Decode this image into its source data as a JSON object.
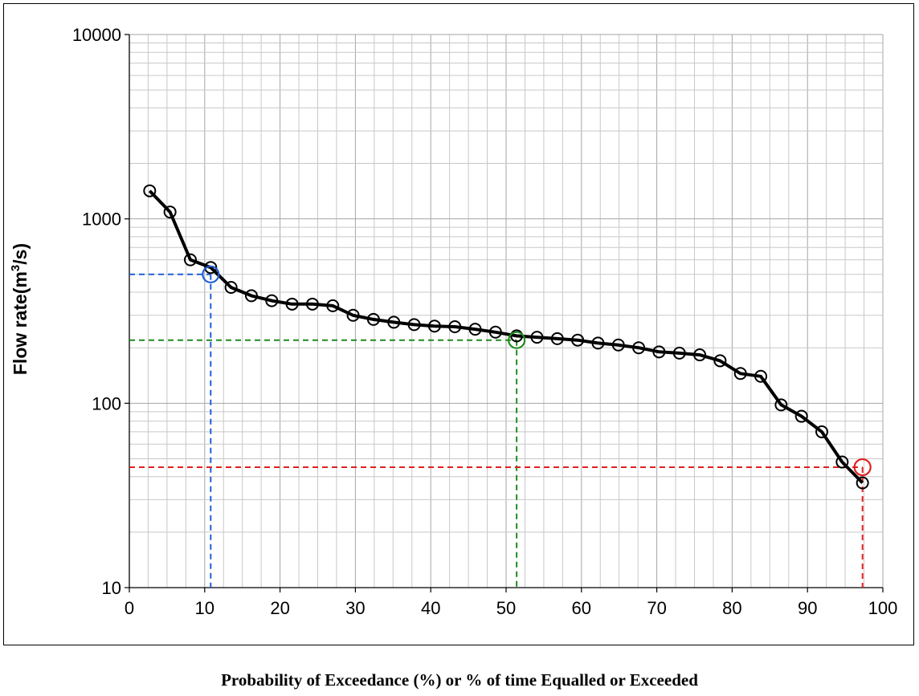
{
  "chart_data": {
    "type": "line",
    "title": "",
    "xlabel": "Probability of Exceedance (%) or % of time Equalled or Exceeded",
    "ylabel_text": "Flow  rate(m",
    "ylabel_superscript": "3",
    "ylabel_suffix": "/s)",
    "xlim": [
      0,
      100
    ],
    "ylim": [
      10,
      10000
    ],
    "y_scale": "log",
    "grid": true,
    "legend": "none",
    "x_ticks": [
      "0",
      "10",
      "20",
      "30",
      "40",
      "50",
      "60",
      "70",
      "80",
      "90",
      "100"
    ],
    "y_ticks": [
      "10",
      "100",
      "1000",
      "10000"
    ],
    "series": [
      {
        "color": "#000000",
        "marker": "circle-open",
        "x": [
          2.7,
          5.4,
          8.1,
          10.8,
          13.5,
          16.2,
          18.9,
          21.6,
          24.3,
          27.0,
          29.7,
          32.4,
          35.1,
          37.8,
          40.5,
          43.2,
          45.9,
          48.6,
          51.4,
          54.1,
          56.8,
          59.5,
          62.2,
          64.9,
          67.6,
          70.3,
          73.0,
          75.7,
          78.4,
          81.1,
          83.8,
          86.5,
          89.2,
          91.9,
          94.6,
          97.3
        ],
        "y": [
          1420,
          1090,
          600,
          545,
          425,
          383,
          360,
          345,
          345,
          338,
          300,
          285,
          275,
          267,
          262,
          260,
          252,
          243,
          232,
          228,
          224,
          220,
          212,
          207,
          200,
          190,
          187,
          183,
          170,
          145,
          140,
          98,
          85,
          70,
          48,
          37
        ]
      }
    ],
    "annotations": [
      {
        "x": 10.8,
        "y": 500,
        "color": "#1f5fd6"
      },
      {
        "x": 51.4,
        "y": 220,
        "color": "#1f8c1f"
      },
      {
        "x": 97.3,
        "y": 45,
        "color": "#e02020"
      }
    ]
  }
}
